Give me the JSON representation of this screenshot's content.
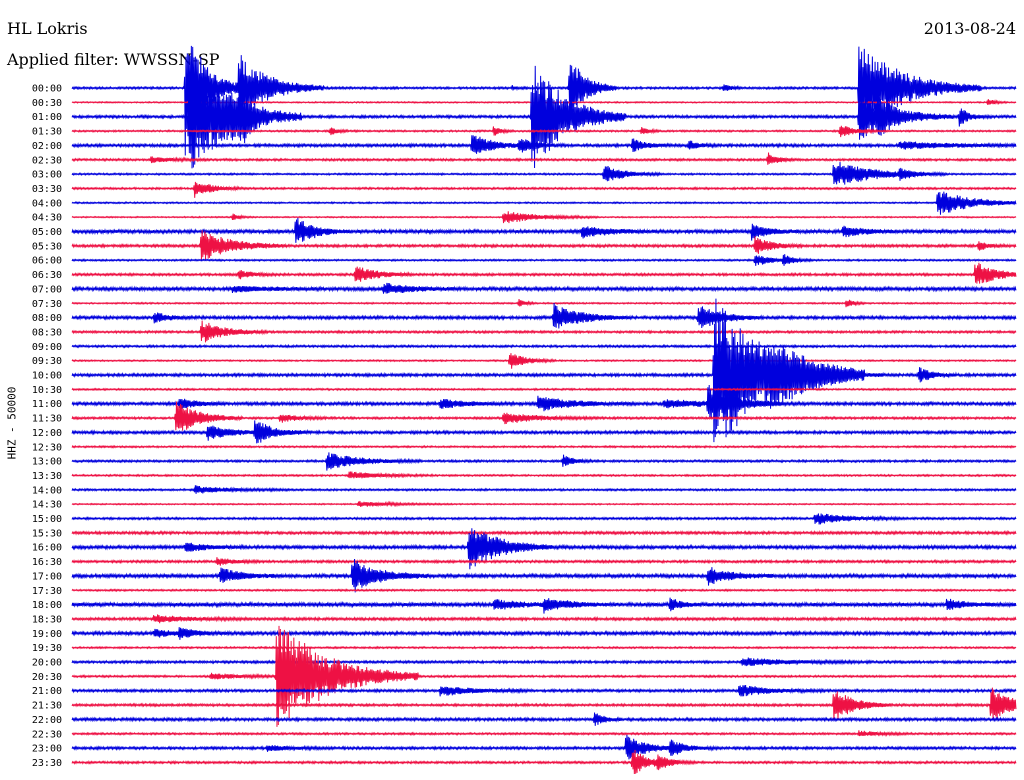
{
  "header": {
    "station": "HL Lokris",
    "filter": "Applied filter: WWSSN-SP",
    "date": "2013-08-24"
  },
  "colors": {
    "even": "#0000dd",
    "odd": "#ee1144"
  },
  "chart_data": {
    "type": "line",
    "title": "HL Lokris",
    "subtitle": "Applied filter: WWSSN-SP",
    "date": "2013-08-24",
    "ylabel": "HHZ - 50000",
    "row_labels": [
      "00:00",
      "00:30",
      "01:00",
      "01:30",
      "02:00",
      "02:30",
      "03:00",
      "03:30",
      "04:00",
      "04:30",
      "05:00",
      "05:30",
      "06:00",
      "06:30",
      "07:00",
      "07:30",
      "08:00",
      "08:30",
      "09:00",
      "09:30",
      "10:00",
      "10:30",
      "11:00",
      "11:30",
      "12:00",
      "12:30",
      "13:00",
      "13:30",
      "14:00",
      "14:30",
      "15:00",
      "15:30",
      "16:00",
      "16:30",
      "17:00",
      "17:30",
      "18:00",
      "18:30",
      "19:00",
      "19:30",
      "20:00",
      "20:30",
      "21:00",
      "21:30",
      "22:00",
      "22:30",
      "23:00",
      "23:30"
    ],
    "x_range_minutes": [
      0,
      30
    ],
    "noise": [
      1.0,
      0.6,
      1.2,
      0.8,
      1.3,
      1.0,
      0.8,
      0.9,
      0.7,
      0.6,
      1.6,
      1.2,
      0.8,
      1.1,
      1.6,
      0.7,
      1.4,
      1.0,
      1.0,
      0.7,
      1.3,
      0.8,
      1.4,
      1.0,
      1.3,
      0.8,
      1.0,
      0.8,
      0.9,
      0.6,
      1.0,
      1.2,
      1.5,
      1.1,
      1.6,
      0.8,
      1.8,
      1.2,
      1.5,
      0.8,
      1.1,
      0.9,
      1.2,
      1.1,
      1.3,
      0.9,
      1.2,
      1.0
    ],
    "events": [
      {
        "row": 0,
        "t": 3.6,
        "amp": 70,
        "dur": 0.6
      },
      {
        "row": 0,
        "t": 5.3,
        "amp": 35,
        "dur": 0.9
      },
      {
        "row": 0,
        "t": 14.0,
        "amp": 3,
        "dur": 0.1
      },
      {
        "row": 0,
        "t": 15.8,
        "amp": 35,
        "dur": 0.5
      },
      {
        "row": 0,
        "t": 20.7,
        "amp": 5,
        "dur": 0.2
      },
      {
        "row": 0,
        "t": 25.0,
        "amp": 48,
        "dur": 1.3
      },
      {
        "row": 1,
        "t": 29.1,
        "amp": 4,
        "dur": 0.2
      },
      {
        "row": 2,
        "t": 3.7,
        "amp": 60,
        "dur": 1.2
      },
      {
        "row": 2,
        "t": 4.9,
        "amp": 10,
        "dur": 0.4
      },
      {
        "row": 2,
        "t": 5.3,
        "amp": 22,
        "dur": 0.3
      },
      {
        "row": 2,
        "t": 14.6,
        "amp": 62,
        "dur": 1.0
      },
      {
        "row": 2,
        "t": 25.0,
        "amp": 26,
        "dur": 1.0
      },
      {
        "row": 2,
        "t": 25.6,
        "amp": 16,
        "dur": 0.3
      },
      {
        "row": 2,
        "t": 28.2,
        "amp": 10,
        "dur": 0.3
      },
      {
        "row": 3,
        "t": 8.2,
        "amp": 5,
        "dur": 0.2
      },
      {
        "row": 3,
        "t": 13.4,
        "amp": 6,
        "dur": 0.2
      },
      {
        "row": 3,
        "t": 18.1,
        "amp": 5,
        "dur": 0.2
      },
      {
        "row": 3,
        "t": 24.4,
        "amp": 8,
        "dur": 0.4
      },
      {
        "row": 4,
        "t": 12.7,
        "amp": 12,
        "dur": 0.6
      },
      {
        "row": 4,
        "t": 14.2,
        "amp": 7,
        "dur": 0.5
      },
      {
        "row": 4,
        "t": 17.8,
        "amp": 7,
        "dur": 0.4
      },
      {
        "row": 4,
        "t": 19.6,
        "amp": 5,
        "dur": 0.3
      },
      {
        "row": 4,
        "t": 26.3,
        "amp": 4,
        "dur": 1.5
      },
      {
        "row": 5,
        "t": 2.5,
        "amp": 3,
        "dur": 0.6
      },
      {
        "row": 5,
        "t": 22.1,
        "amp": 8,
        "dur": 0.3
      },
      {
        "row": 6,
        "t": 16.9,
        "amp": 10,
        "dur": 0.6
      },
      {
        "row": 6,
        "t": 24.2,
        "amp": 14,
        "dur": 1.2
      },
      {
        "row": 6,
        "t": 26.3,
        "amp": 5,
        "dur": 0.3
      },
      {
        "row": 7,
        "t": 3.9,
        "amp": 9,
        "dur": 0.5
      },
      {
        "row": 8,
        "t": 27.5,
        "amp": 14,
        "dur": 1.0
      },
      {
        "row": 9,
        "t": 5.1,
        "amp": 4,
        "dur": 0.2
      },
      {
        "row": 9,
        "t": 13.7,
        "amp": 7,
        "dur": 1.0
      },
      {
        "row": 10,
        "t": 7.1,
        "amp": 14,
        "dur": 0.6
      },
      {
        "row": 10,
        "t": 16.2,
        "amp": 6,
        "dur": 0.8
      },
      {
        "row": 10,
        "t": 21.6,
        "amp": 8,
        "dur": 0.5
      },
      {
        "row": 10,
        "t": 24.5,
        "amp": 6,
        "dur": 0.6
      },
      {
        "row": 11,
        "t": 4.1,
        "amp": 16,
        "dur": 0.9
      },
      {
        "row": 11,
        "t": 21.7,
        "amp": 10,
        "dur": 0.5
      },
      {
        "row": 11,
        "t": 28.8,
        "amp": 5,
        "dur": 0.3
      },
      {
        "row": 12,
        "t": 21.7,
        "amp": 6,
        "dur": 0.5
      },
      {
        "row": 12,
        "t": 22.6,
        "amp": 6,
        "dur": 0.3
      },
      {
        "row": 13,
        "t": 5.3,
        "amp": 5,
        "dur": 0.4
      },
      {
        "row": 13,
        "t": 9.0,
        "amp": 10,
        "dur": 0.6
      },
      {
        "row": 13,
        "t": 28.7,
        "amp": 14,
        "dur": 0.6
      },
      {
        "row": 14,
        "t": 9.9,
        "amp": 6,
        "dur": 0.8
      },
      {
        "row": 14,
        "t": 5.1,
        "amp": 3,
        "dur": 1.0
      },
      {
        "row": 15,
        "t": 14.2,
        "amp": 4,
        "dur": 0.2
      },
      {
        "row": 15,
        "t": 24.6,
        "amp": 5,
        "dur": 0.2
      },
      {
        "row": 16,
        "t": 2.6,
        "amp": 6,
        "dur": 0.4
      },
      {
        "row": 16,
        "t": 15.3,
        "amp": 14,
        "dur": 0.8
      },
      {
        "row": 16,
        "t": 19.9,
        "amp": 13,
        "dur": 0.7
      },
      {
        "row": 17,
        "t": 4.1,
        "amp": 12,
        "dur": 0.7
      },
      {
        "row": 19,
        "t": 13.9,
        "amp": 9,
        "dur": 0.5
      },
      {
        "row": 20,
        "t": 20.4,
        "amp": 80,
        "dur": 1.6
      },
      {
        "row": 20,
        "t": 22.2,
        "amp": 15,
        "dur": 1.2
      },
      {
        "row": 20,
        "t": 26.9,
        "amp": 8,
        "dur": 0.4
      },
      {
        "row": 22,
        "t": 3.4,
        "amp": 6,
        "dur": 0.5
      },
      {
        "row": 22,
        "t": 11.7,
        "amp": 5,
        "dur": 0.8
      },
      {
        "row": 22,
        "t": 14.8,
        "amp": 8,
        "dur": 1.0
      },
      {
        "row": 22,
        "t": 18.8,
        "amp": 4,
        "dur": 1.5
      },
      {
        "row": 22,
        "t": 20.2,
        "amp": 18,
        "dur": 0.8
      },
      {
        "row": 23,
        "t": 3.3,
        "amp": 18,
        "dur": 0.7
      },
      {
        "row": 23,
        "t": 6.6,
        "amp": 5,
        "dur": 0.5
      },
      {
        "row": 23,
        "t": 13.7,
        "amp": 6,
        "dur": 1.0
      },
      {
        "row": 24,
        "t": 4.3,
        "amp": 8,
        "dur": 0.7
      },
      {
        "row": 24,
        "t": 5.8,
        "amp": 12,
        "dur": 0.6
      },
      {
        "row": 26,
        "t": 8.1,
        "amp": 9,
        "dur": 1.0
      },
      {
        "row": 26,
        "t": 15.6,
        "amp": 7,
        "dur": 0.3
      },
      {
        "row": 27,
        "t": 8.8,
        "amp": 4,
        "dur": 0.9
      },
      {
        "row": 28,
        "t": 3.9,
        "amp": 4,
        "dur": 1.0
      },
      {
        "row": 29,
        "t": 9.1,
        "amp": 3,
        "dur": 1.0
      },
      {
        "row": 30,
        "t": 23.6,
        "amp": 6,
        "dur": 1.0
      },
      {
        "row": 32,
        "t": 3.6,
        "amp": 5,
        "dur": 0.6
      },
      {
        "row": 32,
        "t": 12.6,
        "amp": 25,
        "dur": 0.9
      },
      {
        "row": 33,
        "t": 4.6,
        "amp": 4,
        "dur": 0.5
      },
      {
        "row": 34,
        "t": 4.7,
        "amp": 9,
        "dur": 0.6
      },
      {
        "row": 34,
        "t": 8.9,
        "amp": 18,
        "dur": 0.8
      },
      {
        "row": 34,
        "t": 20.2,
        "amp": 9,
        "dur": 0.7
      },
      {
        "row": 36,
        "t": 13.4,
        "amp": 5,
        "dur": 0.8
      },
      {
        "row": 36,
        "t": 15.0,
        "amp": 7,
        "dur": 0.7
      },
      {
        "row": 36,
        "t": 19.0,
        "amp": 7,
        "dur": 0.3
      },
      {
        "row": 36,
        "t": 27.8,
        "amp": 6,
        "dur": 0.5
      },
      {
        "row": 37,
        "t": 2.6,
        "amp": 4,
        "dur": 1.0
      },
      {
        "row": 38,
        "t": 2.6,
        "amp": 4,
        "dur": 0.6
      },
      {
        "row": 38,
        "t": 3.4,
        "amp": 5,
        "dur": 0.5
      },
      {
        "row": 40,
        "t": 21.3,
        "amp": 4,
        "dur": 1.4
      },
      {
        "row": 41,
        "t": 6.5,
        "amp": 60,
        "dur": 1.5
      },
      {
        "row": 41,
        "t": 4.4,
        "amp": 3,
        "dur": 1.0
      },
      {
        "row": 42,
        "t": 11.7,
        "amp": 5,
        "dur": 1.0
      },
      {
        "row": 42,
        "t": 21.2,
        "amp": 6,
        "dur": 0.9
      },
      {
        "row": 43,
        "t": 24.2,
        "amp": 18,
        "dur": 0.6
      },
      {
        "row": 43,
        "t": 29.2,
        "amp": 20,
        "dur": 0.6
      },
      {
        "row": 44,
        "t": 16.6,
        "amp": 7,
        "dur": 0.3
      },
      {
        "row": 45,
        "t": 25.0,
        "amp": 3,
        "dur": 0.6
      },
      {
        "row": 46,
        "t": 17.6,
        "amp": 14,
        "dur": 0.6
      },
      {
        "row": 46,
        "t": 19.0,
        "amp": 8,
        "dur": 0.5
      },
      {
        "row": 46,
        "t": 6.2,
        "amp": 3,
        "dur": 0.7
      },
      {
        "row": 47,
        "t": 17.8,
        "amp": 14,
        "dur": 0.5
      },
      {
        "row": 47,
        "t": 18.6,
        "amp": 6,
        "dur": 0.4
      }
    ]
  }
}
